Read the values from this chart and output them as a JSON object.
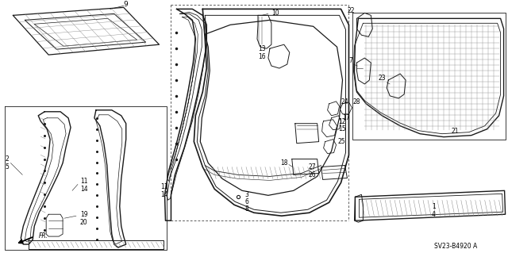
{
  "bg_color": "#ffffff",
  "fig_width": 6.4,
  "fig_height": 3.19,
  "dpi": 100,
  "diagram_code": "SV23-B4920 A",
  "line_color": "#1a1a1a",
  "gray_color": "#888888",
  "light_gray": "#cccccc"
}
